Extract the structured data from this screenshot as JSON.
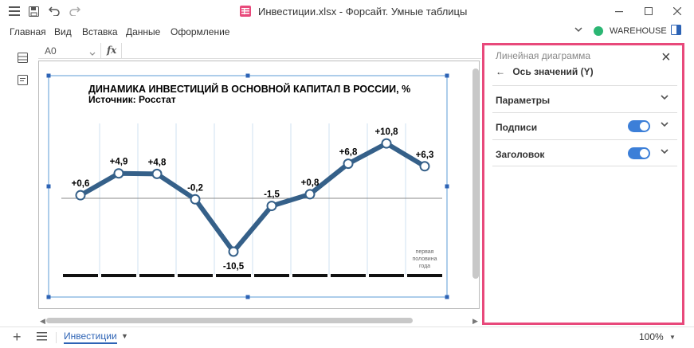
{
  "window": {
    "title": "Инвестиции.xlsx - Форсайт. Умные таблицы",
    "minimize_icon": "minimize-icon",
    "maximize_icon": "maximize-icon",
    "close_icon": "close-icon"
  },
  "menubar": {
    "items": [
      "Главная",
      "Вид",
      "Вставка",
      "Данные",
      "Оформление"
    ],
    "connection_label": "WAREHOUSE",
    "connection_color": "#2bb673"
  },
  "formula_bar": {
    "cell_ref": "A0",
    "fx_label": "fx",
    "value": ""
  },
  "chart_data": {
    "type": "line",
    "title": "ДИНАМИКА ИНВЕСТИЦИЙ В ОСНОВНОЙ КАПИТАЛ В РОССИИ, %",
    "subtitle": "Источник: Росстат",
    "data_labels": [
      "+0,6",
      "+4,9",
      "+4,8",
      "-0,2",
      "-10,5",
      "-1,5",
      "+0,8",
      "+6,8",
      "+10,8",
      "+6,3"
    ],
    "values": [
      0.6,
      4.9,
      4.8,
      -0.2,
      -10.5,
      -1.5,
      0.8,
      6.8,
      10.8,
      6.3
    ],
    "last_point_note": [
      "первая",
      "половина",
      "года"
    ],
    "line_color": "#356089",
    "ylim": [
      -12,
      12
    ],
    "grid": true
  },
  "panel": {
    "title": "Линейная диаграмма",
    "back_label": "Ось значений (Y)",
    "rows": [
      {
        "label": "Параметры",
        "toggle": false
      },
      {
        "label": "Подписи",
        "toggle": true
      },
      {
        "label": "Заголовок",
        "toggle": true
      }
    ],
    "accent": "#e8497b",
    "toggle_color": "#3c7fd8"
  },
  "bottombar": {
    "sheet_tab": "Инвестиции",
    "zoom": "100%"
  }
}
